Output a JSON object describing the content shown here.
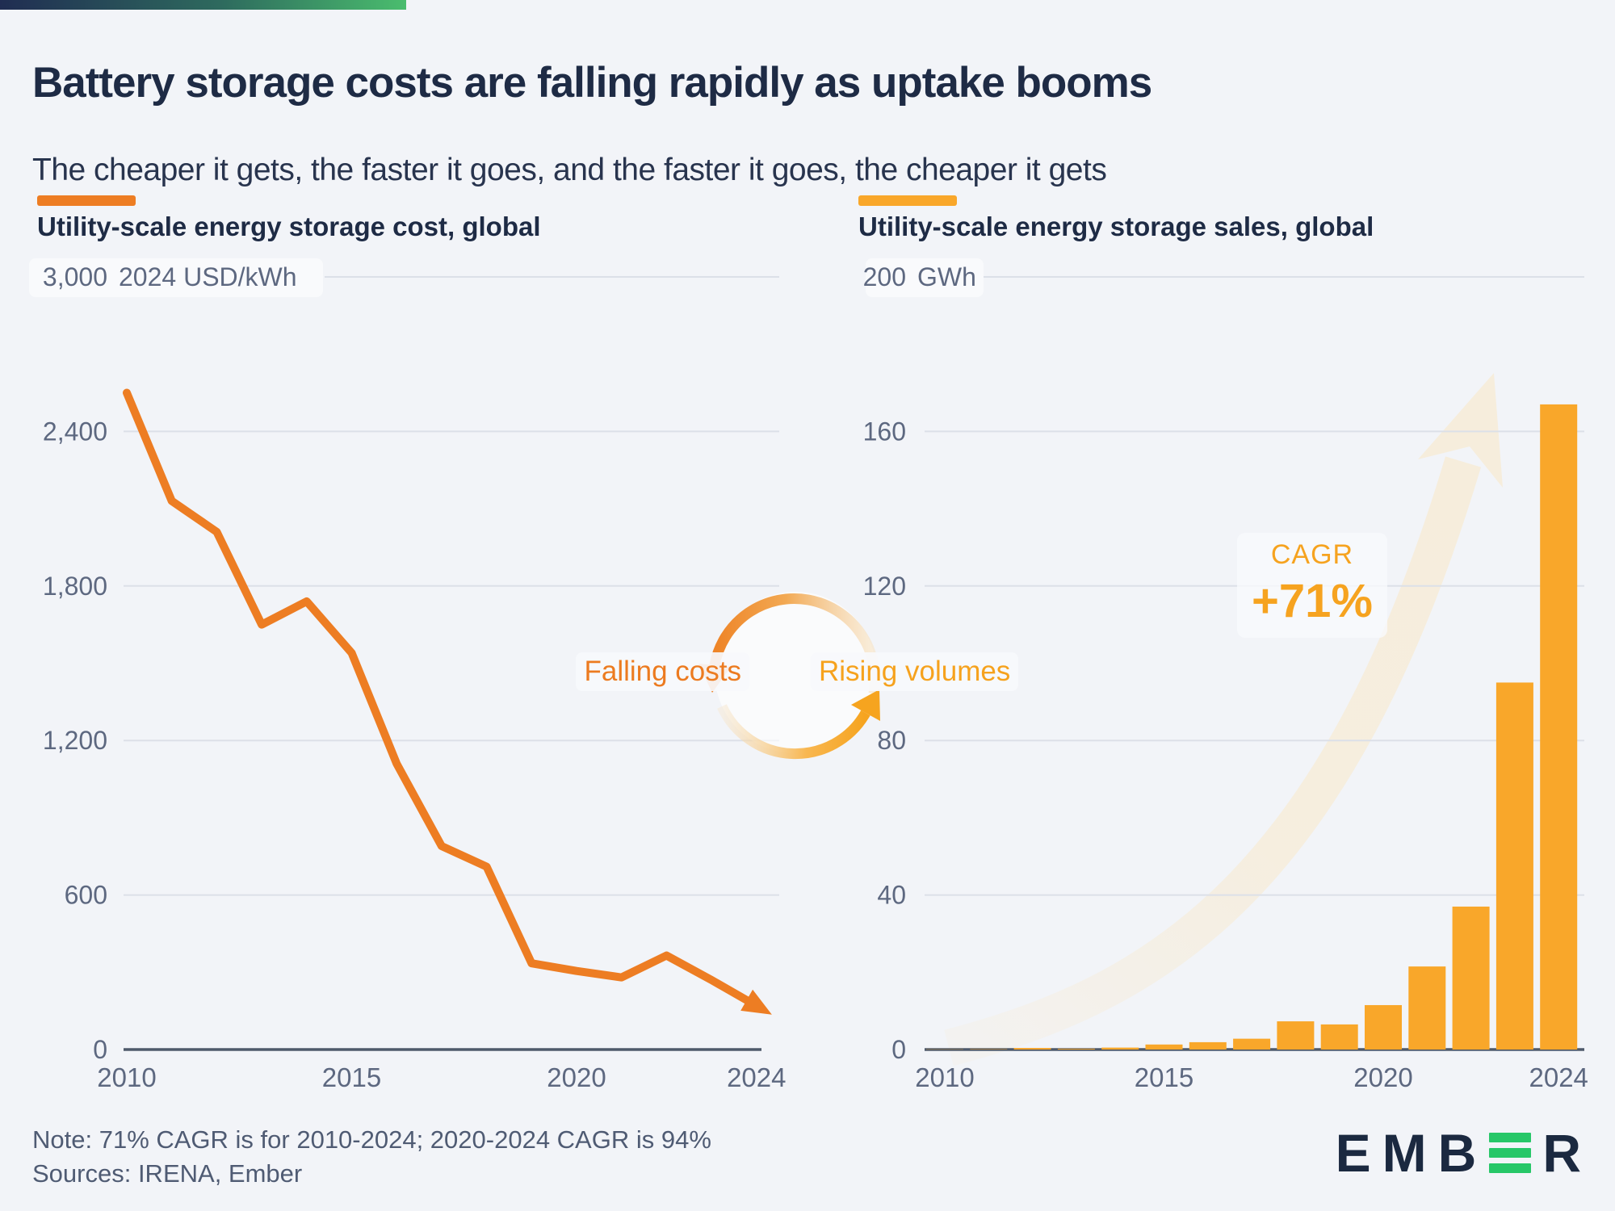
{
  "page": {
    "title": "Battery storage costs are falling rapidly as uptake booms",
    "subtitle": "The cheaper it gets, the faster it goes, and the faster it goes, the cheaper it gets",
    "note_line1": "Note: 71% CAGR is for 2010-2024; 2020-2024 CAGR is 94%",
    "note_line2": "Sources: IRENA, Ember"
  },
  "annotations": {
    "cycle_left": "Falling costs",
    "cycle_right": "Rising volumes",
    "cagr_label": "CAGR",
    "cagr_value": "+71%"
  },
  "logo": {
    "prefix": "EMB",
    "suffix": "R"
  },
  "colors": {
    "background": "#F2F4F8",
    "navy": "#1E2B45",
    "slate_label": "#5D6880",
    "gridline": "#DCE0E8",
    "axis": "#4E5A6B",
    "cost_line": "#ED7D23",
    "sales_bar": "#F9A72A",
    "pale_arrow": "#F6EDDC",
    "cagr_text": "#F6A31F",
    "logo_green": "#27C768",
    "topbar_start": "#202D52",
    "topbar_end": "#4ABD6E"
  },
  "chart_data": [
    {
      "type": "line",
      "title": "Utility-scale energy storage cost, global",
      "unit": "2024 USD/kWh",
      "x": [
        2010,
        2011,
        2012,
        2013,
        2014,
        2015,
        2016,
        2017,
        2018,
        2019,
        2020,
        2021,
        2022,
        2023,
        2024
      ],
      "values": [
        2550,
        2130,
        2010,
        1650,
        1740,
        1540,
        1110,
        790,
        710,
        335,
        305,
        280,
        365,
        270,
        170
      ],
      "ylim": [
        0,
        3000
      ],
      "yticks": [
        0,
        600,
        1200,
        1800,
        2400,
        3000
      ],
      "xticks": [
        2010,
        2015,
        2020,
        2024
      ],
      "color": "#ED7D23",
      "grid": true,
      "legend_position": "top-left",
      "end_marker": "arrow"
    },
    {
      "type": "bar",
      "title": "Utility-scale energy storage sales, global",
      "unit": "GWh",
      "x": [
        2010,
        2011,
        2012,
        2013,
        2014,
        2015,
        2016,
        2017,
        2018,
        2019,
        2020,
        2021,
        2022,
        2023,
        2024
      ],
      "values": [
        0.05,
        0.1,
        0.4,
        0.2,
        0.5,
        1.3,
        1.9,
        2.8,
        7.3,
        6.5,
        11.5,
        21.5,
        37,
        95,
        167
      ],
      "ylim": [
        0,
        200
      ],
      "yticks": [
        0,
        40,
        80,
        120,
        160,
        200
      ],
      "xticks": [
        2010,
        2015,
        2020,
        2024
      ],
      "color": "#F9A72A",
      "grid": true,
      "legend_position": "top-left"
    }
  ]
}
